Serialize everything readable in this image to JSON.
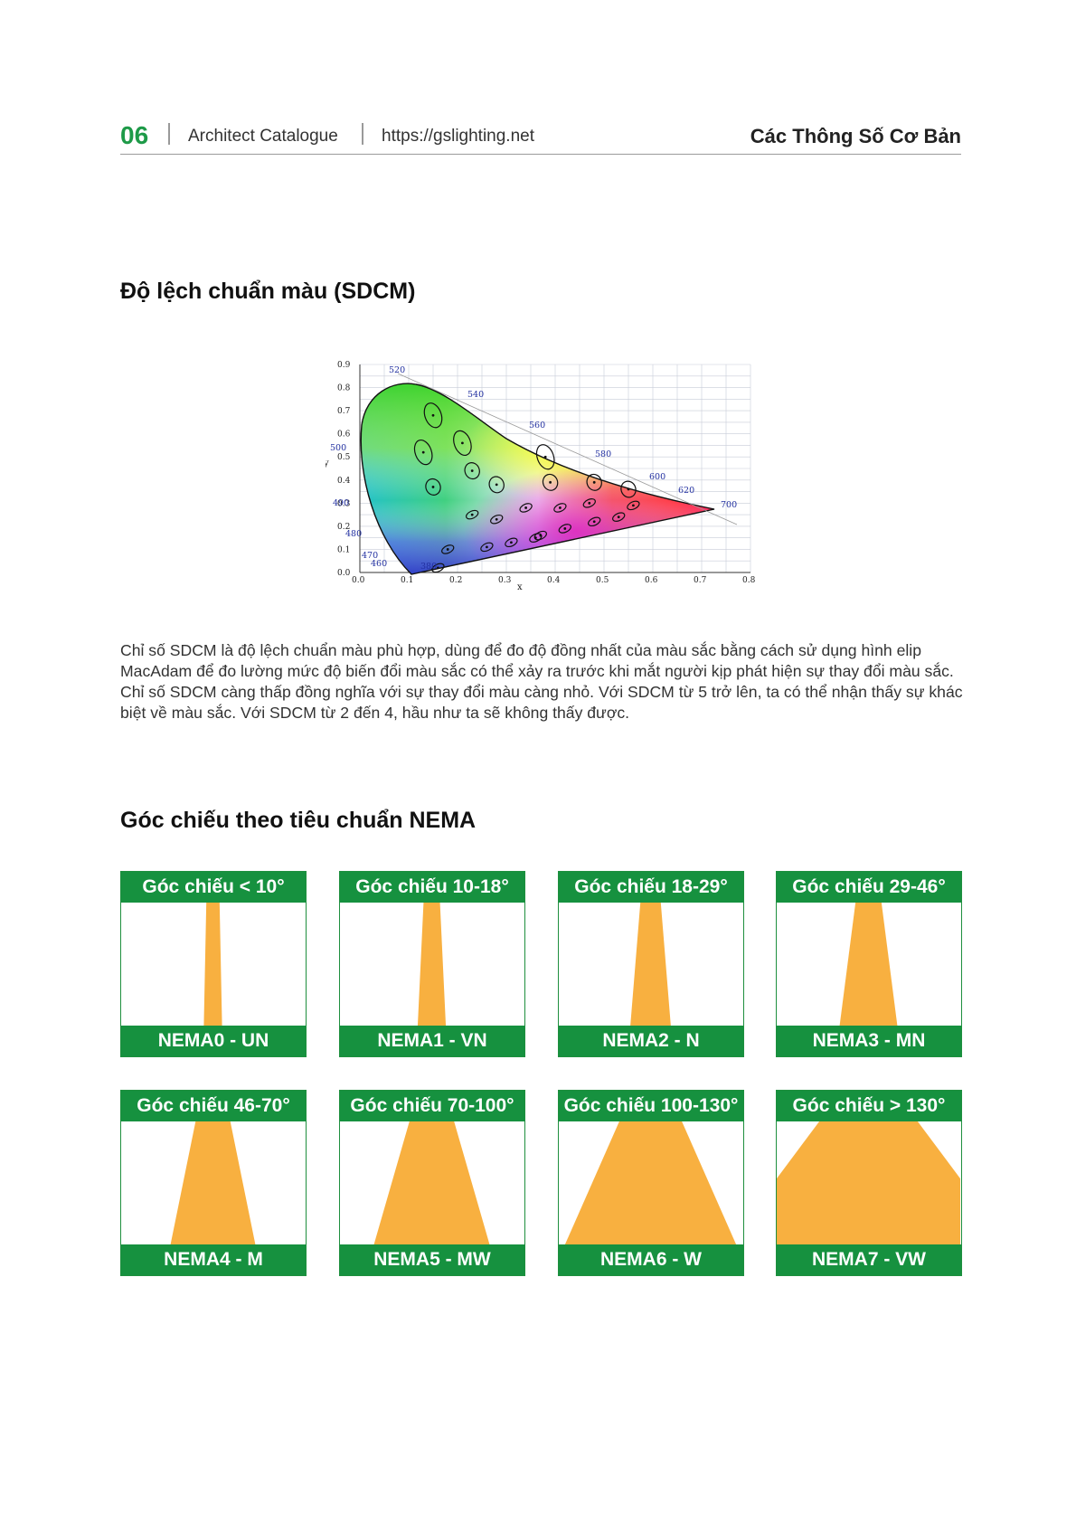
{
  "header": {
    "page_number": "06",
    "catalogue": "Architect Catalogue",
    "url": "https://gslighting.net",
    "section": "Các Thông Số Cơ Bản"
  },
  "sdcm": {
    "title": "Độ lệch chuẩn màu (SDCM)",
    "paragraph": "Chỉ số SDCM là độ lệch chuẩn màu phù hợp, dùng để đo độ đồng nhất của màu sắc bằng cách sử dụng hình elip MacAdam để đo lường mức độ biến đổi màu sắc có thể xảy ra trước khi mắt người kịp phát hiện sự thay đổi màu sắc. Chỉ số SDCM càng thấp đồng nghĩa với sự thay đổi màu càng nhỏ. Với SDCM từ 5 trở lên, ta có thể nhận thấy sự khác biệt về màu sắc. Với SDCM từ 2 đến 4, hầu như ta sẽ không thấy được."
  },
  "chart_data": {
    "type": "scatter",
    "xlabel": "x",
    "ylabel": "y",
    "xlim": [
      0.0,
      0.8
    ],
    "ylim": [
      0.0,
      0.9
    ],
    "x_ticks": [
      "0.0",
      "0.1",
      "0.2",
      "0.3",
      "0.4",
      "0.5",
      "0.6",
      "0.7",
      "0.8"
    ],
    "y_ticks": [
      "0.0",
      "0.1",
      "0.2",
      "0.3",
      "0.4",
      "0.5",
      "0.6",
      "0.7",
      "0.8",
      "0.9"
    ],
    "wavelength_labels": [
      "520",
      "540",
      "560",
      "580",
      "600",
      "620",
      "700",
      "500",
      "490",
      "480",
      "470",
      "460",
      "380"
    ],
    "ellipse_centers": [
      [
        0.15,
        0.68
      ],
      [
        0.13,
        0.52
      ],
      [
        0.21,
        0.56
      ],
      [
        0.15,
        0.37
      ],
      [
        0.23,
        0.44
      ],
      [
        0.28,
        0.38
      ],
      [
        0.38,
        0.5
      ],
      [
        0.39,
        0.39
      ],
      [
        0.48,
        0.39
      ],
      [
        0.55,
        0.36
      ],
      [
        0.47,
        0.3
      ],
      [
        0.56,
        0.29
      ],
      [
        0.23,
        0.25
      ],
      [
        0.28,
        0.23
      ],
      [
        0.34,
        0.28
      ],
      [
        0.41,
        0.28
      ],
      [
        0.26,
        0.11
      ],
      [
        0.31,
        0.13
      ],
      [
        0.36,
        0.15
      ],
      [
        0.37,
        0.16
      ],
      [
        0.42,
        0.19
      ],
      [
        0.48,
        0.22
      ],
      [
        0.53,
        0.24
      ],
      [
        0.18,
        0.1
      ],
      [
        0.16,
        0.02
      ]
    ]
  },
  "nema": {
    "title": "Góc chiếu theo tiêu chuẩn NEMA",
    "color_header": "#16913f",
    "color_beam": "#f8b040",
    "items": [
      {
        "angle": "Góc chiếu < 10°",
        "code": "NEMA0 - UN",
        "spread": 0.06
      },
      {
        "angle": "Góc chiếu 10-18°",
        "code": "NEMA1 - VN",
        "spread": 0.14
      },
      {
        "angle": "Góc chiếu 18-29°",
        "code": "NEMA2 - N",
        "spread": 0.24
      },
      {
        "angle": "Góc chiếu 29-46°",
        "code": "NEMA3 - MN",
        "spread": 0.38
      },
      {
        "angle": "Góc chiếu 46-70°",
        "code": "NEMA4 - M",
        "spread": 0.6
      },
      {
        "angle": "Góc chiếu 70-100°",
        "code": "NEMA5 - MW",
        "spread": 0.85
      },
      {
        "angle": "Góc chiếu 100-130°",
        "code": "NEMA6 - W",
        "spread": 1.3
      },
      {
        "angle": "Góc chiếu > 130°",
        "code": "NEMA7 - VW",
        "spread": 2.2
      }
    ]
  }
}
